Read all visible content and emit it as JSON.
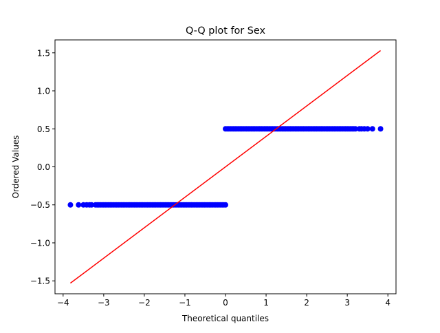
{
  "chart_data": {
    "type": "scatter",
    "title": "Q-Q plot for Sex",
    "xlabel": "Theoretical quantiles",
    "ylabel": "Ordered Values",
    "xlim": [
      -4.2,
      4.2
    ],
    "ylim": [
      -1.67,
      1.67
    ],
    "x_ticks": [
      -4,
      -3,
      -2,
      -1,
      0,
      1,
      2,
      3,
      4
    ],
    "x_tick_labels": [
      "−4",
      "−3",
      "−2",
      "−1",
      "0",
      "1",
      "2",
      "3",
      "4"
    ],
    "y_ticks": [
      -1.5,
      -1.0,
      -0.5,
      0.0,
      0.5,
      1.0,
      1.5
    ],
    "y_tick_labels": [
      "−1.5",
      "−1.0",
      "−0.5",
      "0.0",
      "0.5",
      "1.0",
      "1.5"
    ],
    "grid": false,
    "series": [
      {
        "kind": "points",
        "color": "#0000ff",
        "groups": [
          {
            "y": -0.5,
            "x_dense_range": [
              -3.2,
              0.0
            ],
            "x_outliers": [
              -3.82,
              -3.62,
              -3.5,
              -3.42,
              -3.35,
              -3.3
            ]
          },
          {
            "y": 0.5,
            "x_dense_range": [
              0.0,
              3.2
            ],
            "x_outliers": [
              3.3,
              3.35,
              3.42,
              3.5,
              3.62,
              3.82
            ]
          }
        ]
      },
      {
        "kind": "fit-line",
        "color": "#ff0000",
        "x": [
          -3.82,
          3.82
        ],
        "y": [
          -1.53,
          1.53
        ]
      }
    ]
  }
}
